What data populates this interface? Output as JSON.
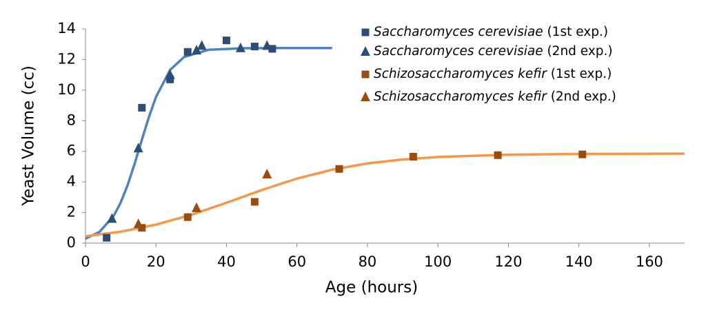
{
  "chart_data": {
    "type": "scatter",
    "x_label": "Age (hours)",
    "y_label": "Yeast Volume (cc)",
    "xlim": [
      0,
      170
    ],
    "xticks": [
      0,
      20,
      40,
      60,
      80,
      100,
      120,
      140,
      160
    ],
    "ylim": [
      0,
      14
    ],
    "yticks": [
      0,
      2,
      4,
      6,
      8,
      10,
      12,
      14
    ],
    "legend": "top-right",
    "series": [
      {
        "name": "Saccharomyces cerevisiae (1st exp.)",
        "color": "#2c4d75",
        "marker": "square",
        "x": [
          6,
          16,
          24,
          29,
          40,
          48,
          53
        ],
        "values": [
          0.35,
          8.85,
          10.7,
          12.5,
          13.25,
          12.85,
          12.7
        ]
      },
      {
        "name": "Saccharomyces cerevisiae (2nd exp.)",
        "color": "#2c4d75",
        "marker": "triangle",
        "x": [
          7.5,
          15,
          24,
          31.5,
          33,
          44,
          51.5
        ],
        "values": [
          1.6,
          6.2,
          11.0,
          12.6,
          12.9,
          12.75,
          12.9
        ]
      },
      {
        "name": "Schizosaccharomyces kefir (1st exp.)",
        "color": "#994c0f",
        "marker": "square",
        "x": [
          16,
          29,
          48,
          72,
          93,
          117,
          141
        ],
        "values": [
          1.0,
          1.7,
          2.7,
          4.85,
          5.65,
          5.75,
          5.8
        ]
      },
      {
        "name": "Schizosaccharomyces kefir (2nd exp.)",
        "color": "#994c0f",
        "marker": "triangle",
        "x": [
          15,
          31.5,
          51.5
        ],
        "values": [
          1.25,
          2.3,
          4.5
        ]
      }
    ],
    "curves": [
      {
        "color": "#4f81bd",
        "x": [
          0,
          4,
          8,
          10,
          12,
          14,
          16,
          18,
          20,
          24,
          28,
          35,
          45,
          55,
          70
        ],
        "values": [
          0.29,
          0.74,
          1.78,
          2.66,
          3.82,
          5.23,
          6.76,
          8.25,
          9.55,
          11.32,
          12.17,
          12.64,
          12.74,
          12.75,
          12.75
        ]
      },
      {
        "color": "#f79646",
        "x": [
          0,
          10,
          20,
          30,
          40,
          50,
          60,
          70,
          80,
          90,
          100,
          120,
          140,
          170
        ],
        "values": [
          0.45,
          0.75,
          1.21,
          1.85,
          2.64,
          3.47,
          4.22,
          4.8,
          5.21,
          5.47,
          5.63,
          5.78,
          5.83,
          5.85
        ]
      }
    ]
  }
}
